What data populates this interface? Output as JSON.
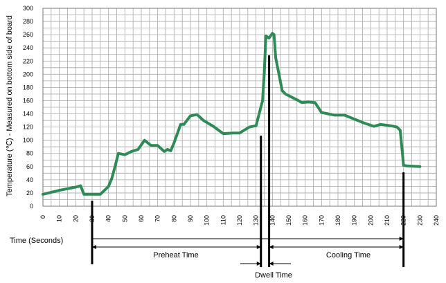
{
  "chart_data": {
    "type": "line",
    "title": "",
    "xlabel": "Time (Seconds)",
    "ylabel": "Temperature (℃) - Measured on bottom side of board",
    "xlim": [
      0,
      240
    ],
    "ylim": [
      0,
      300
    ],
    "x_ticks": [
      0,
      10,
      20,
      30,
      40,
      50,
      60,
      70,
      80,
      90,
      100,
      110,
      120,
      130,
      140,
      150,
      160,
      170,
      180,
      190,
      200,
      210,
      220,
      230,
      240
    ],
    "y_ticks": [
      0,
      20,
      40,
      60,
      80,
      100,
      120,
      140,
      160,
      180,
      200,
      220,
      240,
      260,
      280,
      300
    ],
    "grid": true,
    "line_color": "#2e8b57",
    "series": [
      {
        "x": [
          0,
          10,
          20,
          23,
          25,
          30,
          35,
          40,
          42,
          44,
          46,
          50,
          54,
          58,
          62,
          66,
          70,
          74,
          76,
          78,
          80,
          84,
          86,
          90,
          94,
          98,
          104,
          110,
          116,
          120,
          126,
          130,
          134,
          135,
          136,
          138,
          140,
          141,
          142,
          144,
          146,
          148,
          152,
          156,
          158,
          162,
          166,
          170,
          174,
          178,
          184,
          190,
          196,
          202,
          206,
          212,
          216,
          218,
          220,
          222,
          230
        ],
        "y": [
          18,
          24,
          29,
          31,
          18,
          18,
          18,
          30,
          42,
          60,
          80,
          78,
          83,
          86,
          100,
          92,
          92,
          83,
          86,
          84,
          96,
          124,
          124,
          137,
          139,
          130,
          121,
          110,
          111,
          111,
          120,
          122,
          160,
          200,
          258,
          255,
          262,
          260,
          225,
          200,
          175,
          170,
          165,
          160,
          157,
          158,
          157,
          142,
          140,
          138,
          138,
          132,
          126,
          121,
          124,
          122,
          120,
          115,
          62,
          61,
          60
        ]
      }
    ],
    "annotations": {
      "preheat": {
        "label": "Preheat Time",
        "start": 30,
        "end": 133
      },
      "dwell": {
        "label": "Dwell Time",
        "start": 133,
        "end": 138
      },
      "cooling": {
        "label": "Cooling Time",
        "start": 138,
        "end": 220
      }
    }
  }
}
